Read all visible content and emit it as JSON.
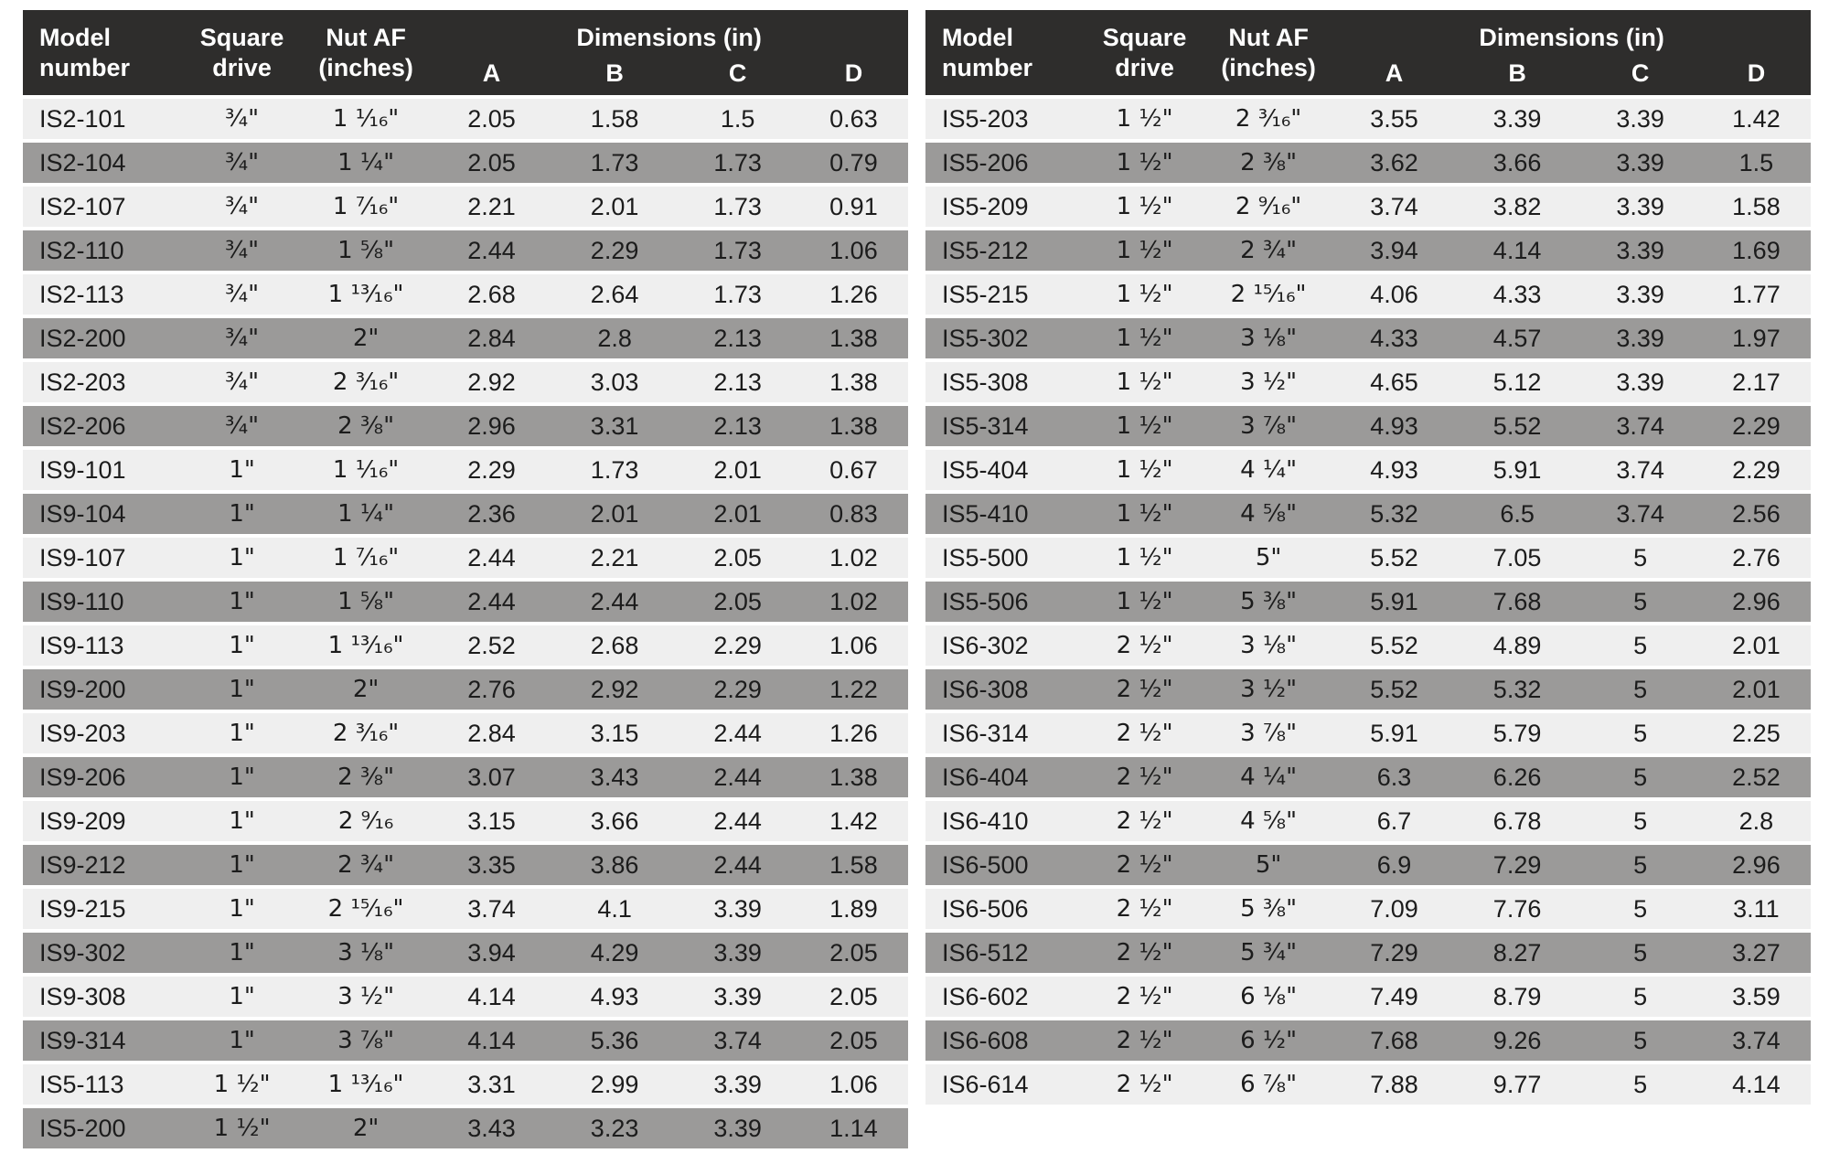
{
  "header": {
    "model": [
      "Model",
      "number"
    ],
    "square": [
      "Square",
      "drive"
    ],
    "nut": [
      "Nut AF",
      "(inches)"
    ],
    "dimensions": "Dimensions (in)",
    "dim_cols": [
      "A",
      "B",
      "C",
      "D"
    ]
  },
  "colors": {
    "header_bg": "#2e2d2c",
    "row_light": "#efefef",
    "row_dark": "#9b9a99",
    "header_text": "#ffffff",
    "text_dark": "#1c1c1c"
  },
  "tables": {
    "left": {
      "rows": [
        {
          "model": "IS2-101",
          "drive": "¾\"",
          "nut": "1 ¹⁄₁₆\"",
          "a": "2.05",
          "b": "1.58",
          "c": "1.5",
          "d": "0.63"
        },
        {
          "model": "IS2-104",
          "drive": "¾\"",
          "nut": "1 ¼\"",
          "a": "2.05",
          "b": "1.73",
          "c": "1.73",
          "d": "0.79"
        },
        {
          "model": "IS2-107",
          "drive": "¾\"",
          "nut": "1 ⁷⁄₁₆\"",
          "a": "2.21",
          "b": "2.01",
          "c": "1.73",
          "d": "0.91"
        },
        {
          "model": "IS2-110",
          "drive": "¾\"",
          "nut": "1 ⅝\"",
          "a": "2.44",
          "b": "2.29",
          "c": "1.73",
          "d": "1.06"
        },
        {
          "model": "IS2-113",
          "drive": "¾\"",
          "nut": "1 ¹³⁄₁₆\"",
          "a": "2.68",
          "b": "2.64",
          "c": "1.73",
          "d": "1.26"
        },
        {
          "model": "IS2-200",
          "drive": "¾\"",
          "nut": "2\"",
          "a": "2.84",
          "b": "2.8",
          "c": "2.13",
          "d": "1.38"
        },
        {
          "model": "IS2-203",
          "drive": "¾\"",
          "nut": "2 ³⁄₁₆\"",
          "a": "2.92",
          "b": "3.03",
          "c": "2.13",
          "d": "1.38"
        },
        {
          "model": "IS2-206",
          "drive": "¾\"",
          "nut": "2 ⅜\"",
          "a": "2.96",
          "b": "3.31",
          "c": "2.13",
          "d": "1.38"
        },
        {
          "model": "IS9-101",
          "drive": "1\"",
          "nut": "1 ¹⁄₁₆\"",
          "a": "2.29",
          "b": "1.73",
          "c": "2.01",
          "d": "0.67"
        },
        {
          "model": "IS9-104",
          "drive": "1\"",
          "nut": "1 ¼\"",
          "a": "2.36",
          "b": "2.01",
          "c": "2.01",
          "d": "0.83"
        },
        {
          "model": "IS9-107",
          "drive": "1\"",
          "nut": "1 ⁷⁄₁₆\"",
          "a": "2.44",
          "b": "2.21",
          "c": "2.05",
          "d": "1.02"
        },
        {
          "model": "IS9-110",
          "drive": "1\"",
          "nut": "1 ⅝\"",
          "a": "2.44",
          "b": "2.44",
          "c": "2.05",
          "d": "1.02"
        },
        {
          "model": "IS9-113",
          "drive": "1\"",
          "nut": "1 ¹³⁄₁₆\"",
          "a": "2.52",
          "b": "2.68",
          "c": "2.29",
          "d": "1.06"
        },
        {
          "model": "IS9-200",
          "drive": "1\"",
          "nut": "2\"",
          "a": "2.76",
          "b": "2.92",
          "c": "2.29",
          "d": "1.22"
        },
        {
          "model": "IS9-203",
          "drive": "1\"",
          "nut": "2 ³⁄₁₆\"",
          "a": "2.84",
          "b": "3.15",
          "c": "2.44",
          "d": "1.26"
        },
        {
          "model": "IS9-206",
          "drive": "1\"",
          "nut": "2 ⅜\"",
          "a": "3.07",
          "b": "3.43",
          "c": "2.44",
          "d": "1.38"
        },
        {
          "model": "IS9-209",
          "drive": "1\"",
          "nut": "2 ⁹⁄₁₆",
          "a": "3.15",
          "b": "3.66",
          "c": "2.44",
          "d": "1.42"
        },
        {
          "model": "IS9-212",
          "drive": "1\"",
          "nut": "2 ¾\"",
          "a": "3.35",
          "b": "3.86",
          "c": "2.44",
          "d": "1.58"
        },
        {
          "model": "IS9-215",
          "drive": "1\"",
          "nut": "2 ¹⁵⁄₁₆\"",
          "a": "3.74",
          "b": "4.1",
          "c": "3.39",
          "d": "1.89"
        },
        {
          "model": "IS9-302",
          "drive": "1\"",
          "nut": "3 ⅛\"",
          "a": "3.94",
          "b": "4.29",
          "c": "3.39",
          "d": "2.05"
        },
        {
          "model": "IS9-308",
          "drive": "1\"",
          "nut": "3 ½\"",
          "a": "4.14",
          "b": "4.93",
          "c": "3.39",
          "d": "2.05"
        },
        {
          "model": "IS9-314",
          "drive": "1\"",
          "nut": "3 ⅞\"",
          "a": "4.14",
          "b": "5.36",
          "c": "3.74",
          "d": "2.05"
        },
        {
          "model": "IS5-113",
          "drive": "1 ½\"",
          "nut": "1 ¹³⁄₁₆\"",
          "a": "3.31",
          "b": "2.99",
          "c": "3.39",
          "d": "1.06"
        },
        {
          "model": "IS5-200",
          "drive": "1 ½\"",
          "nut": "2\"",
          "a": "3.43",
          "b": "3.23",
          "c": "3.39",
          "d": "1.14"
        }
      ]
    },
    "right": {
      "rows": [
        {
          "model": "IS5-203",
          "drive": "1 ½\"",
          "nut": "2 ³⁄₁₆\"",
          "a": "3.55",
          "b": "3.39",
          "c": "3.39",
          "d": "1.42"
        },
        {
          "model": "IS5-206",
          "drive": "1 ½\"",
          "nut": "2 ⅜\"",
          "a": "3.62",
          "b": "3.66",
          "c": "3.39",
          "d": "1.5"
        },
        {
          "model": "IS5-209",
          "drive": "1 ½\"",
          "nut": "2 ⁹⁄₁₆\"",
          "a": "3.74",
          "b": "3.82",
          "c": "3.39",
          "d": "1.58"
        },
        {
          "model": "IS5-212",
          "drive": "1 ½\"",
          "nut": "2 ¾\"",
          "a": "3.94",
          "b": "4.14",
          "c": "3.39",
          "d": "1.69"
        },
        {
          "model": "IS5-215",
          "drive": "1 ½\"",
          "nut": "2 ¹⁵⁄₁₆\"",
          "a": "4.06",
          "b": "4.33",
          "c": "3.39",
          "d": "1.77"
        },
        {
          "model": "IS5-302",
          "drive": "1 ½\"",
          "nut": "3 ⅛\"",
          "a": "4.33",
          "b": "4.57",
          "c": "3.39",
          "d": "1.97"
        },
        {
          "model": "IS5-308",
          "drive": "1 ½\"",
          "nut": "3 ½\"",
          "a": "4.65",
          "b": "5.12",
          "c": "3.39",
          "d": "2.17"
        },
        {
          "model": "IS5-314",
          "drive": "1 ½\"",
          "nut": "3 ⅞\"",
          "a": "4.93",
          "b": "5.52",
          "c": "3.74",
          "d": "2.29"
        },
        {
          "model": "IS5-404",
          "drive": "1 ½\"",
          "nut": "4 ¼\"",
          "a": "4.93",
          "b": "5.91",
          "c": "3.74",
          "d": "2.29"
        },
        {
          "model": "IS5-410",
          "drive": "1 ½\"",
          "nut": "4 ⅝\"",
          "a": "5.32",
          "b": "6.5",
          "c": "3.74",
          "d": "2.56"
        },
        {
          "model": "IS5-500",
          "drive": "1 ½\"",
          "nut": "5\"",
          "a": "5.52",
          "b": "7.05",
          "c": "5",
          "d": "2.76"
        },
        {
          "model": "IS5-506",
          "drive": "1 ½\"",
          "nut": "5 ⅜\"",
          "a": "5.91",
          "b": "7.68",
          "c": "5",
          "d": "2.96"
        },
        {
          "model": "IS6-302",
          "drive": "2 ½\"",
          "nut": "3 ⅛\"",
          "a": "5.52",
          "b": "4.89",
          "c": "5",
          "d": "2.01"
        },
        {
          "model": "IS6-308",
          "drive": "2 ½\"",
          "nut": "3 ½\"",
          "a": "5.52",
          "b": "5.32",
          "c": "5",
          "d": "2.01"
        },
        {
          "model": "IS6-314",
          "drive": "2 ½\"",
          "nut": "3 ⅞\"",
          "a": "5.91",
          "b": "5.79",
          "c": "5",
          "d": "2.25"
        },
        {
          "model": "IS6-404",
          "drive": "2 ½\"",
          "nut": "4 ¼\"",
          "a": "6.3",
          "b": "6.26",
          "c": "5",
          "d": "2.52"
        },
        {
          "model": "IS6-410",
          "drive": "2 ½\"",
          "nut": "4 ⅝\"",
          "a": "6.7",
          "b": "6.78",
          "c": "5",
          "d": "2.8"
        },
        {
          "model": "IS6-500",
          "drive": "2 ½\"",
          "nut": "5\"",
          "a": "6.9",
          "b": "7.29",
          "c": "5",
          "d": "2.96"
        },
        {
          "model": "IS6-506",
          "drive": "2 ½\"",
          "nut": "5 ⅜\"",
          "a": "7.09",
          "b": "7.76",
          "c": "5",
          "d": "3.11"
        },
        {
          "model": "IS6-512",
          "drive": "2 ½\"",
          "nut": "5 ¾\"",
          "a": "7.29",
          "b": "8.27",
          "c": "5",
          "d": "3.27"
        },
        {
          "model": "IS6-602",
          "drive": "2 ½\"",
          "nut": "6 ⅛\"",
          "a": "7.49",
          "b": "8.79",
          "c": "5",
          "d": "3.59"
        },
        {
          "model": "IS6-608",
          "drive": "2 ½\"",
          "nut": "6 ½\"",
          "a": "7.68",
          "b": "9.26",
          "c": "5",
          "d": "3.74"
        },
        {
          "model": "IS6-614",
          "drive": "2 ½\"",
          "nut": "6 ⅞\"",
          "a": "7.88",
          "b": "9.77",
          "c": "5",
          "d": "4.14"
        }
      ]
    }
  }
}
